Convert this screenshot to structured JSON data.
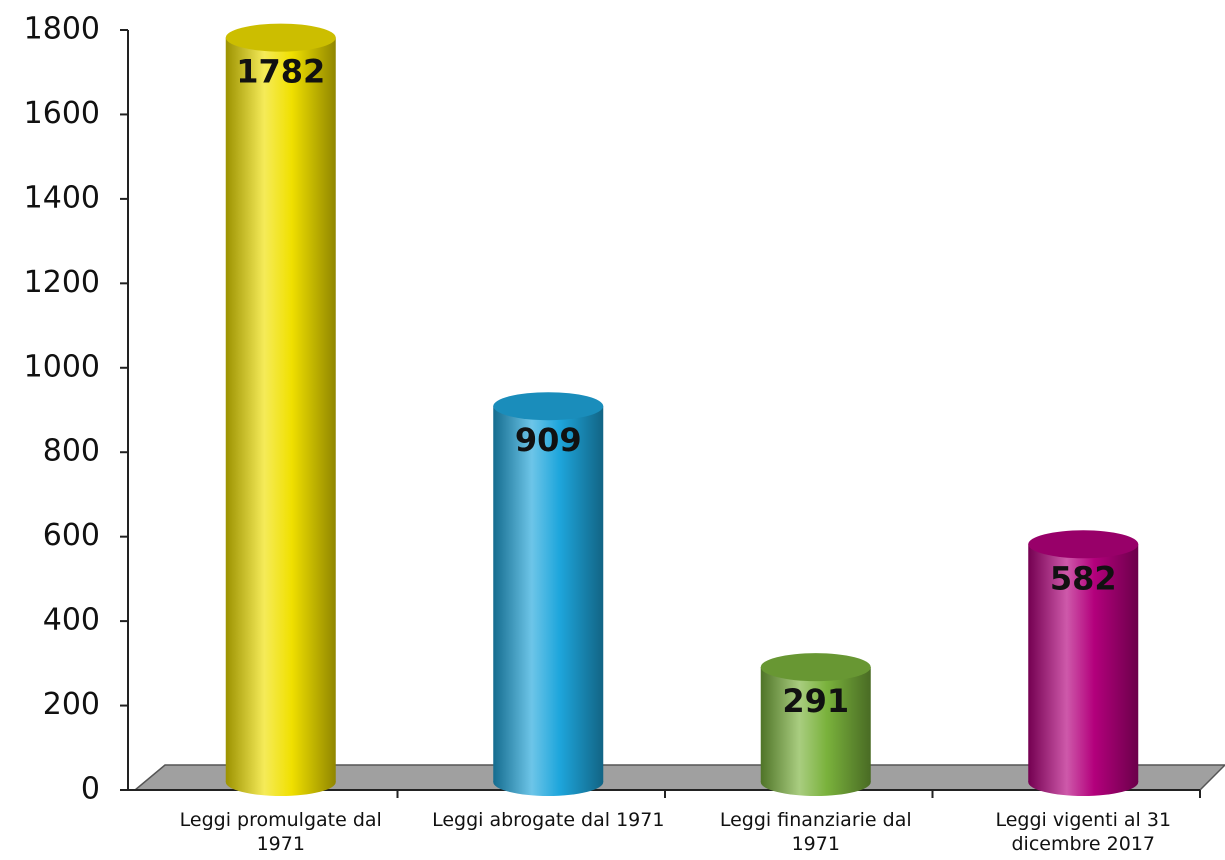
{
  "chart_data": {
    "type": "bar",
    "categories": [
      "Leggi promulgate dal 1971",
      "Leggi abrogate dal 1971",
      "Leggi finanziarie dal 1971",
      "Leggi vigenti al 31 dicembre 2017"
    ],
    "values": [
      1782,
      909,
      291,
      582
    ],
    "colors": [
      "#f0e000",
      "#1ea6dc",
      "#7ab23c",
      "#b3007c"
    ],
    "ylim": [
      0,
      1800
    ],
    "yticks": [
      0,
      200,
      400,
      600,
      800,
      1000,
      1200,
      1400,
      1600,
      1800
    ]
  }
}
